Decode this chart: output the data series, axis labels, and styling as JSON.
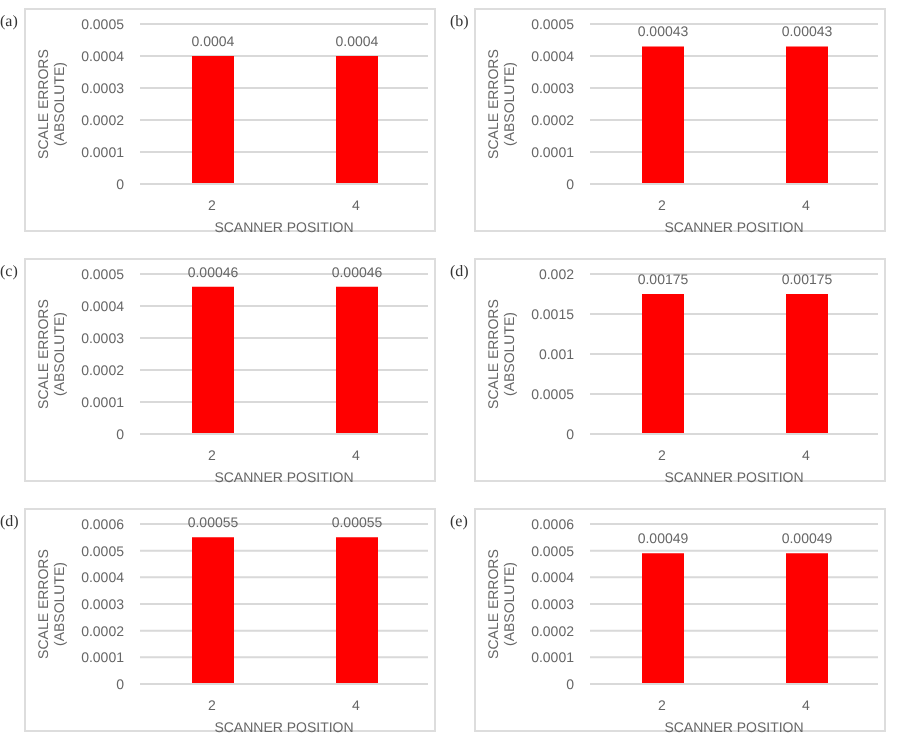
{
  "chart_data": [
    {
      "type": "bar",
      "annotations": [
        "(a)"
      ],
      "categories": [
        "2",
        "4"
      ],
      "values": [
        0.0004,
        0.0004
      ],
      "color": "#ff0000",
      "ylim": [
        0,
        0.0005
      ],
      "yticks": [
        0,
        0.0001,
        0.0002,
        0.0003,
        0.0004,
        0.0005
      ],
      "grid": "y",
      "data_labels": true,
      "xlabel": "SCANNER POSITION",
      "ylabel": "SCALE ERRORS (ABSOLUTE)"
    },
    {
      "type": "bar",
      "annotations": [
        "(b)"
      ],
      "categories": [
        "2",
        "4"
      ],
      "values": [
        0.00043,
        0.00043
      ],
      "color": "#ff0000",
      "ylim": [
        0,
        0.0005
      ],
      "yticks": [
        0,
        0.0001,
        0.0002,
        0.0003,
        0.0004,
        0.0005
      ],
      "grid": "y",
      "data_labels": true,
      "xlabel": "SCANNER POSITION",
      "ylabel": "SCALE ERRORS (ABSOLUTE)"
    },
    {
      "type": "bar",
      "annotations": [
        "(c)"
      ],
      "categories": [
        "2",
        "4"
      ],
      "values": [
        0.00046,
        0.00046
      ],
      "color": "#ff0000",
      "ylim": [
        0,
        0.0005
      ],
      "yticks": [
        0,
        0.0001,
        0.0002,
        0.0003,
        0.0004,
        0.0005
      ],
      "grid": "y",
      "data_labels": true,
      "xlabel": "SCANNER POSITION",
      "ylabel": "SCALE ERRORS (ABSOLUTE)"
    },
    {
      "type": "bar",
      "annotations": [
        "(d)"
      ],
      "categories": [
        "2",
        "4"
      ],
      "values": [
        0.00175,
        0.00175
      ],
      "color": "#ff0000",
      "ylim": [
        0,
        0.002
      ],
      "yticks": [
        0,
        0.0005,
        0.001,
        0.0015,
        0.002
      ],
      "grid": "y",
      "data_labels": true,
      "xlabel": "SCANNER POSITION",
      "ylabel": "SCALE ERRORS (ABSOLUTE)"
    },
    {
      "type": "bar",
      "annotations": [
        "(d)"
      ],
      "categories": [
        "2",
        "4"
      ],
      "values": [
        0.00055,
        0.00055
      ],
      "color": "#ff0000",
      "ylim": [
        0,
        0.0006
      ],
      "yticks": [
        0,
        0.0001,
        0.0002,
        0.0003,
        0.0004,
        0.0005,
        0.0006
      ],
      "grid": "y",
      "data_labels": true,
      "xlabel": "SCANNER POSITION",
      "ylabel": "SCALE ERRORS (ABSOLUTE)"
    },
    {
      "type": "bar",
      "annotations": [
        "(e)"
      ],
      "categories": [
        "2",
        "4"
      ],
      "values": [
        0.00049,
        0.00049
      ],
      "color": "#ff0000",
      "ylim": [
        0,
        0.0006
      ],
      "yticks": [
        0,
        0.0001,
        0.0002,
        0.0003,
        0.0004,
        0.0005,
        0.0006
      ],
      "grid": "y",
      "data_labels": true,
      "xlabel": "SCANNER POSITION",
      "ylabel": "SCALE ERRORS (ABSOLUTE)"
    }
  ]
}
